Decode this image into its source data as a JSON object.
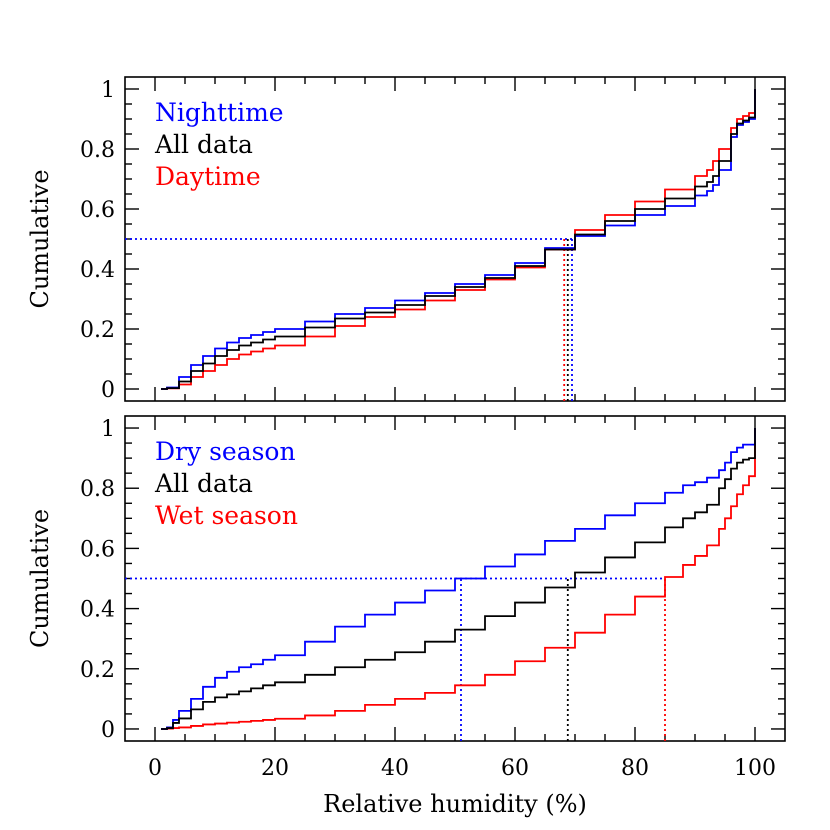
{
  "colors": {
    "blue": "#0000ff",
    "black": "#000000",
    "red": "#ff0000"
  },
  "x_label": "Relative humidity (%)",
  "chart_data": [
    {
      "type": "line",
      "step": true,
      "title": "",
      "ylabel": "Cumulative",
      "xlabel": "",
      "xlim": [
        -5,
        105
      ],
      "ylim": [
        -0.04,
        1.04
      ],
      "xticks": [
        0,
        20,
        40,
        60,
        80,
        100
      ],
      "yticks": [
        0,
        0.2,
        0.4,
        0.6,
        0.8,
        1
      ],
      "ytick_labels": [
        "0",
        "0.2",
        "0.4",
        "0.6",
        "0.8",
        "1"
      ],
      "grid": false,
      "legend_position": "top-left",
      "series": [
        {
          "name": "Nighttime",
          "color": "#0000ff",
          "x": [
            1,
            2,
            4,
            6,
            8,
            10,
            12,
            14,
            16,
            18,
            20,
            25,
            30,
            35,
            40,
            45,
            50,
            55,
            60,
            65,
            70,
            75,
            80,
            85,
            90,
            92,
            93,
            94,
            96,
            97,
            98,
            99,
            100
          ],
          "y": [
            0,
            0.005,
            0.04,
            0.08,
            0.11,
            0.135,
            0.155,
            0.17,
            0.18,
            0.19,
            0.2,
            0.225,
            0.25,
            0.27,
            0.295,
            0.32,
            0.35,
            0.38,
            0.42,
            0.47,
            0.51,
            0.545,
            0.58,
            0.61,
            0.645,
            0.66,
            0.68,
            0.73,
            0.84,
            0.88,
            0.89,
            0.9,
            1.0
          ],
          "median": 69.5
        },
        {
          "name": "All data",
          "color": "#000000",
          "x": [
            1,
            2,
            4,
            6,
            8,
            10,
            12,
            14,
            16,
            18,
            20,
            25,
            30,
            35,
            40,
            45,
            50,
            55,
            60,
            65,
            70,
            75,
            80,
            85,
            90,
            92,
            93,
            94,
            96,
            97,
            98,
            99,
            100
          ],
          "y": [
            0,
            0.003,
            0.025,
            0.06,
            0.085,
            0.11,
            0.13,
            0.145,
            0.155,
            0.165,
            0.175,
            0.205,
            0.235,
            0.255,
            0.28,
            0.31,
            0.34,
            0.37,
            0.41,
            0.465,
            0.515,
            0.56,
            0.6,
            0.635,
            0.675,
            0.69,
            0.71,
            0.76,
            0.85,
            0.885,
            0.895,
            0.905,
            1.0
          ],
          "median": 68.8
        },
        {
          "name": "Daytime",
          "color": "#ff0000",
          "x": [
            1,
            2,
            4,
            6,
            8,
            10,
            12,
            14,
            16,
            18,
            20,
            25,
            30,
            35,
            40,
            45,
            50,
            55,
            60,
            65,
            70,
            75,
            80,
            85,
            90,
            92,
            93,
            94,
            96,
            97,
            98,
            99,
            100
          ],
          "y": [
            0,
            0.002,
            0.015,
            0.04,
            0.06,
            0.08,
            0.1,
            0.115,
            0.125,
            0.135,
            0.145,
            0.175,
            0.21,
            0.24,
            0.265,
            0.295,
            0.33,
            0.365,
            0.405,
            0.465,
            0.53,
            0.58,
            0.625,
            0.665,
            0.71,
            0.73,
            0.76,
            0.8,
            0.87,
            0.9,
            0.91,
            0.92,
            1.0
          ],
          "median": 68.2
        }
      ]
    },
    {
      "type": "line",
      "step": true,
      "title": "",
      "ylabel": "Cumulative",
      "xlabel": "Relative humidity (%)",
      "xlim": [
        -5,
        105
      ],
      "ylim": [
        -0.04,
        1.04
      ],
      "xticks": [
        0,
        20,
        40,
        60,
        80,
        100
      ],
      "xtick_labels": [
        "0",
        "20",
        "40",
        "60",
        "80",
        "100"
      ],
      "yticks": [
        0,
        0.2,
        0.4,
        0.6,
        0.8,
        1
      ],
      "ytick_labels": [
        "0",
        "0.2",
        "0.4",
        "0.6",
        "0.8",
        "1"
      ],
      "grid": false,
      "legend_position": "top-left",
      "series": [
        {
          "name": "Dry season",
          "color": "#0000ff",
          "x": [
            1,
            2,
            3,
            4,
            6,
            8,
            10,
            12,
            14,
            16,
            18,
            20,
            25,
            30,
            35,
            40,
            45,
            50,
            55,
            60,
            65,
            70,
            75,
            80,
            85,
            88,
            90,
            92,
            94,
            95,
            96,
            97,
            98,
            99,
            100
          ],
          "y": [
            0,
            0.005,
            0.03,
            0.06,
            0.1,
            0.14,
            0.17,
            0.19,
            0.205,
            0.215,
            0.23,
            0.245,
            0.29,
            0.34,
            0.38,
            0.42,
            0.46,
            0.5,
            0.54,
            0.58,
            0.625,
            0.665,
            0.71,
            0.75,
            0.785,
            0.81,
            0.82,
            0.835,
            0.86,
            0.885,
            0.92,
            0.935,
            0.945,
            0.945,
            1.0
          ],
          "median": 51.0
        },
        {
          "name": "All data",
          "color": "#000000",
          "x": [
            1,
            2,
            3,
            4,
            6,
            8,
            10,
            12,
            14,
            16,
            18,
            20,
            25,
            30,
            35,
            40,
            45,
            50,
            55,
            60,
            65,
            70,
            75,
            80,
            85,
            88,
            90,
            92,
            94,
            95,
            96,
            97,
            98,
            99,
            100
          ],
          "y": [
            0,
            0.003,
            0.02,
            0.035,
            0.065,
            0.09,
            0.105,
            0.115,
            0.125,
            0.135,
            0.145,
            0.155,
            0.18,
            0.205,
            0.23,
            0.255,
            0.29,
            0.33,
            0.375,
            0.42,
            0.47,
            0.52,
            0.57,
            0.62,
            0.67,
            0.7,
            0.72,
            0.745,
            0.8,
            0.83,
            0.865,
            0.885,
            0.895,
            0.9,
            1.0
          ],
          "median": 68.8
        },
        {
          "name": "Wet season",
          "color": "#ff0000",
          "x": [
            1,
            2,
            3,
            4,
            6,
            8,
            10,
            12,
            14,
            16,
            18,
            20,
            25,
            30,
            35,
            40,
            45,
            50,
            55,
            60,
            65,
            70,
            75,
            80,
            85,
            88,
            90,
            92,
            94,
            95,
            96,
            97,
            98,
            99,
            100
          ],
          "y": [
            0,
            0.001,
            0.003,
            0.005,
            0.01,
            0.015,
            0.018,
            0.021,
            0.024,
            0.027,
            0.03,
            0.034,
            0.045,
            0.06,
            0.08,
            0.1,
            0.12,
            0.145,
            0.18,
            0.225,
            0.27,
            0.32,
            0.38,
            0.44,
            0.505,
            0.545,
            0.575,
            0.61,
            0.665,
            0.7,
            0.74,
            0.78,
            0.81,
            0.84,
            1.0
          ],
          "median": 85.0
        }
      ]
    }
  ]
}
